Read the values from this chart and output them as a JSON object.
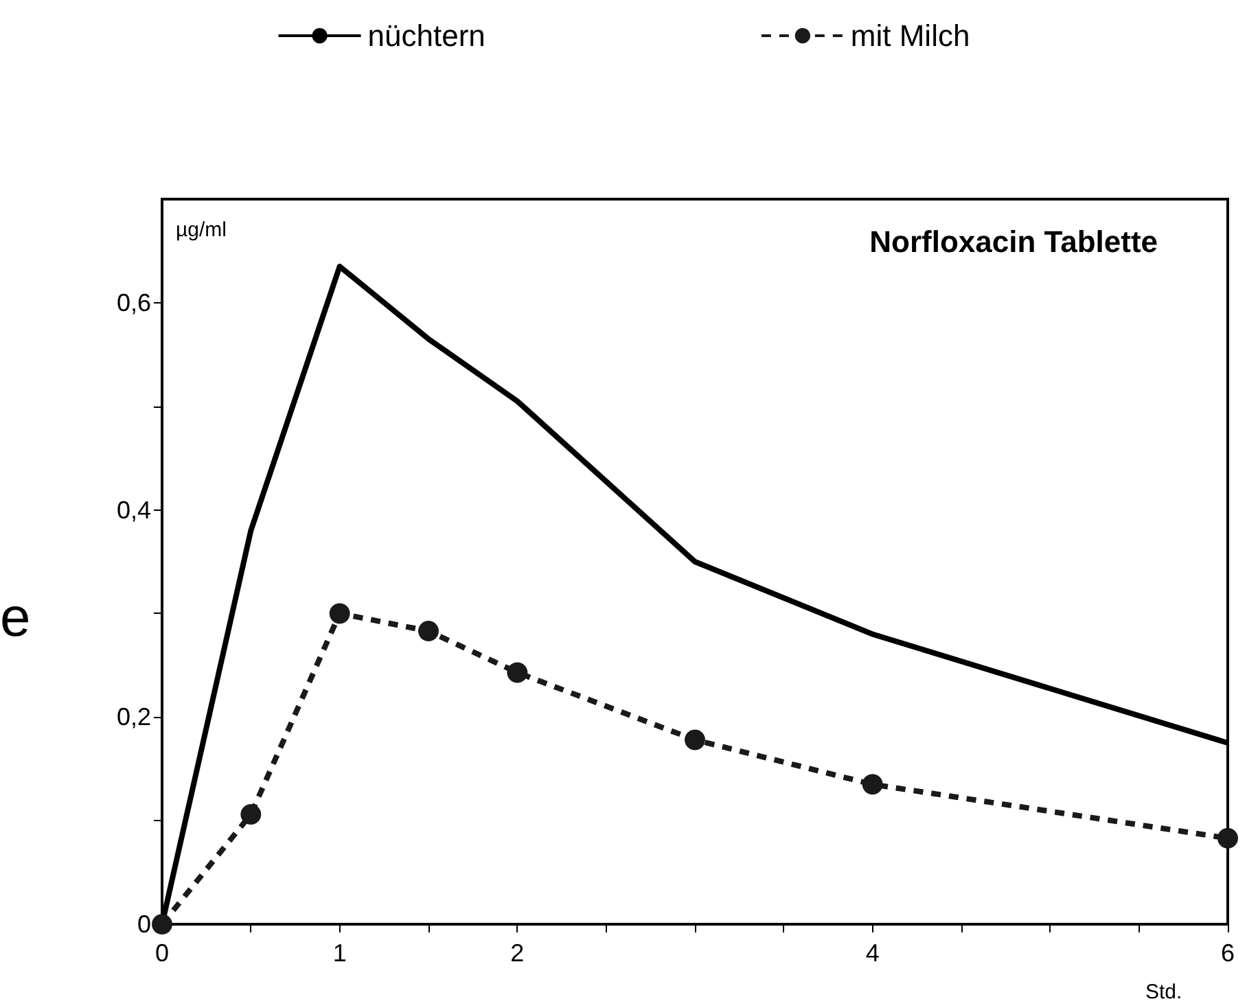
{
  "chart_data": {
    "type": "line",
    "title": "Norfloxacin Tablette",
    "xlabel": "Std.",
    "ylabel": "µg/ml",
    "annotations": [
      "e"
    ],
    "x": [
      0,
      0.5,
      1,
      1.5,
      2,
      3,
      4,
      6
    ],
    "series": [
      {
        "name": "nüchtern",
        "color": "#000000",
        "values": [
          0,
          0.38,
          0.635,
          0.565,
          0.505,
          0.35,
          0.28,
          0.175
        ],
        "marker": "none",
        "line_style": "solid"
      },
      {
        "name": "mit Milch",
        "color": "#1a1a1a",
        "values": [
          0,
          0.106,
          0.3,
          0.283,
          0.243,
          0.178,
          0.135,
          0.083
        ],
        "marker": "circle",
        "line_style": "dashed"
      }
    ],
    "xlim": [
      0,
      6
    ],
    "xticks": [
      0,
      {
        "value": 0.5,
        "label": null
      },
      1,
      {
        "value": 1.5,
        "label": null
      },
      2,
      {
        "value": 2.5,
        "label": null
      },
      {
        "value": 3,
        "label": null
      },
      {
        "value": 3.5,
        "label": null
      },
      4,
      {
        "value": 4.5,
        "label": null
      },
      {
        "value": 5,
        "label": null
      },
      {
        "value": 5.5,
        "label": null
      },
      6
    ],
    "ylim": [
      0,
      0.7
    ],
    "yticks": [
      0,
      {
        "value": 0.1,
        "label": null
      },
      {
        "value": 0.2,
        "label": "0,2"
      },
      {
        "value": 0.3,
        "label": null
      },
      {
        "value": 0.4,
        "label": "0,4"
      },
      {
        "value": 0.5,
        "label": null
      },
      {
        "value": 0.6,
        "label": "0,6"
      }
    ],
    "grid": false,
    "legend": "top"
  }
}
